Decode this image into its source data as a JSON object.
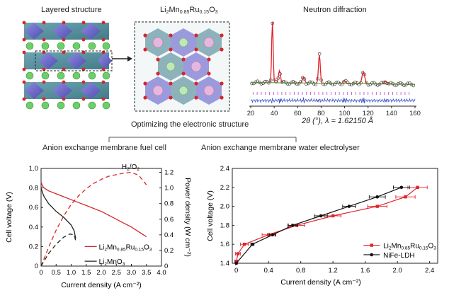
{
  "top": {
    "layered_title": "Layered structure",
    "formula": {
      "li": "Li",
      "li_sub": "2",
      "mn": "Mn",
      "mn_sub": "0.85",
      "ru": "Ru",
      "ru_sub": "0.15",
      "o": "O",
      "o_sub": "3"
    },
    "neutron_title": "Neutron diffraction",
    "neutron_xaxis": {
      "ticks": [
        "20",
        "40",
        "60",
        "80",
        "100",
        "120",
        "140",
        "160"
      ],
      "label": "2θ (°), λ = 1.62150 Å"
    },
    "bracket_label": "Optimizing the electronic structure",
    "left_section": "Anion exchange membrane fuel cell",
    "right_section": "Anion exchange membrane water electrolyser"
  },
  "chart_data": [
    {
      "type": "line",
      "title": "",
      "xlabel": "Current density (A cm⁻²)",
      "ylabel": "Cell voltage (V)",
      "ylabel_right": "Power density (W cm⁻²)",
      "xticks": [
        "0",
        "0.5",
        "1.0",
        "1.5",
        "2.0",
        "2.5",
        "3.0",
        "3.5",
        "4.0"
      ],
      "yticks_left": [
        "0",
        "0.2",
        "0.4",
        "0.6",
        "0.8",
        "1.0"
      ],
      "yticks_right": [
        "0",
        "0.2",
        "0.4",
        "0.6",
        "0.8",
        "1.0",
        "1.2"
      ],
      "xlim": [
        0,
        4.0
      ],
      "ylim": [
        0,
        1.0
      ],
      "ylim_right": [
        0,
        1.25
      ],
      "annotation": {
        "h": "H",
        "h_sub": "2",
        "sep": "/O",
        "o_sub": "2"
      },
      "legend": [
        {
          "li": "Li",
          "s1": "2",
          "mn": "Mn",
          "s2": "0.85",
          "ru": "Ru",
          "s3": "0.15",
          "o": "O",
          "s4": "3"
        },
        {
          "li": "Li",
          "s1": "2",
          "mn": "MnO",
          "s2": "3"
        }
      ],
      "series": [
        {
          "name": "Li2Mn0.85Ru0.15O3 voltage",
          "color": "#d62728",
          "style": "solid",
          "axis": "left",
          "x": [
            0,
            0.05,
            0.1,
            0.25,
            0.5,
            0.75,
            1.0,
            1.25,
            1.5,
            1.75,
            2.0,
            2.25,
            2.5,
            2.75,
            3.0,
            3.25,
            3.5
          ],
          "y": [
            0.86,
            0.82,
            0.8,
            0.77,
            0.74,
            0.71,
            0.68,
            0.65,
            0.62,
            0.59,
            0.56,
            0.52,
            0.48,
            0.44,
            0.4,
            0.35,
            0.3
          ]
        },
        {
          "name": "Li2Mn0.85Ru0.15O3 power",
          "color": "#d62728",
          "style": "dashed",
          "axis": "right",
          "x": [
            0,
            0.25,
            0.5,
            0.75,
            1.0,
            1.25,
            1.5,
            1.75,
            2.0,
            2.25,
            2.5,
            2.75,
            3.0,
            3.25,
            3.5
          ],
          "y": [
            0,
            0.24,
            0.46,
            0.64,
            0.79,
            0.9,
            0.99,
            1.06,
            1.11,
            1.15,
            1.17,
            1.19,
            1.2,
            1.16,
            1.04
          ]
        },
        {
          "name": "Li2MnO3 voltage",
          "color": "#222222",
          "style": "solid",
          "axis": "left",
          "x": [
            0,
            0.05,
            0.1,
            0.25,
            0.5,
            0.75,
            1.0,
            1.1,
            1.15
          ],
          "y": [
            0.8,
            0.75,
            0.71,
            0.64,
            0.56,
            0.5,
            0.42,
            0.36,
            0.28
          ]
        },
        {
          "name": "Li2MnO3 power",
          "color": "#222222",
          "style": "dashed",
          "axis": "right",
          "x": [
            0,
            0.25,
            0.5,
            0.75,
            0.95,
            1.1,
            1.15
          ],
          "y": [
            0,
            0.16,
            0.28,
            0.37,
            0.41,
            0.4,
            0.32
          ]
        }
      ]
    },
    {
      "type": "line",
      "title": "",
      "xlabel": "Current density (A cm⁻²)",
      "ylabel": "Cell voltage (V)",
      "xticks": [
        "0",
        "0.4",
        "0.8",
        "1.2",
        "1.6",
        "2.0",
        "2.4"
      ],
      "yticks": [
        "1.4",
        "1.6",
        "1.8",
        "2.0",
        "2.2",
        "2.4"
      ],
      "xlim": [
        -0.05,
        2.5
      ],
      "ylim": [
        1.4,
        2.4
      ],
      "legend_label_ldh": "NiFe-LDH",
      "legend": [
        {
          "li": "Li",
          "s1": "2",
          "mn": "Mn",
          "s2": "0.85",
          "ru": "Ru",
          "s3": "0.15",
          "o": "O",
          "s4": "3"
        }
      ],
      "series": [
        {
          "name": "Li2Mn0.85Ru0.15O3",
          "color": "#e0242b",
          "marker": "square",
          "x": [
            0,
            0.02,
            0.1,
            0.4,
            0.75,
            1.2,
            1.75,
            2.1,
            2.25
          ],
          "y": [
            1.42,
            1.5,
            1.6,
            1.7,
            1.8,
            1.9,
            2.0,
            2.1,
            2.2
          ],
          "xerr": [
            0.02,
            0.03,
            0.05,
            0.08,
            0.1,
            0.1,
            0.12,
            0.12,
            0.12
          ]
        },
        {
          "name": "NiFe-LDH",
          "color": "#111111",
          "marker": "circle",
          "x": [
            0,
            0.2,
            0.45,
            0.7,
            1.05,
            1.4,
            1.75,
            2.05
          ],
          "y": [
            1.4,
            1.6,
            1.7,
            1.8,
            1.9,
            2.0,
            2.1,
            2.2
          ],
          "xerr": [
            0.01,
            0.02,
            0.04,
            0.06,
            0.08,
            0.08,
            0.1,
            0.1
          ]
        }
      ]
    }
  ]
}
